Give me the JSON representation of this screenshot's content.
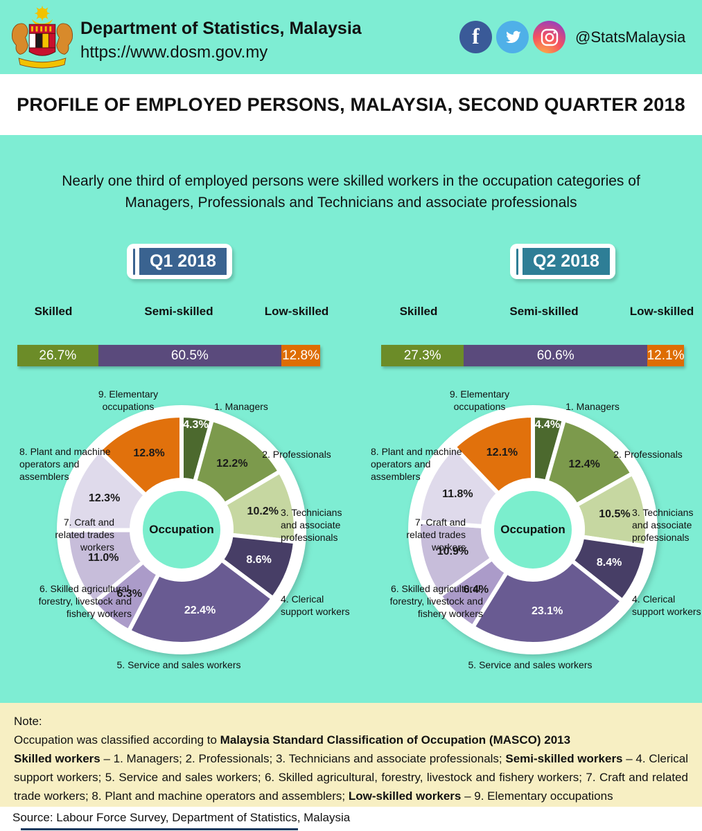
{
  "header": {
    "title": "Department of Statistics, Malaysia",
    "url": "https://www.dosm.gov.my",
    "handle": "@StatsMalaysia",
    "social": [
      {
        "name": "facebook",
        "color": "#3A5A98"
      },
      {
        "name": "twitter",
        "color": "#4FB0E8"
      },
      {
        "name": "instagram",
        "color": "gradient(#FDB743,#F5515F,#9F41B5)"
      }
    ]
  },
  "banner": {
    "title": "PROFILE OF EMPLOYED PERSONS, MALAYSIA, SECOND QUARTER 2018"
  },
  "subtitle": {
    "line1": "Nearly one third of employed persons were skilled workers in the occupation categories of",
    "line2": "Managers, Professionals and Technicians and associate professionals"
  },
  "badges": [
    {
      "label": "Q1 2018",
      "color": "#3A6390"
    },
    {
      "label": "Q2 2018",
      "color": "#2E7E96"
    }
  ],
  "colors": {
    "background_teal": "#7EEDD3",
    "note_yellow": "#F7EFC3",
    "donut_hole_teal": "#7BEECD",
    "white": "#FFFFFF"
  },
  "chart_data": [
    {
      "type": "bar",
      "quarter": "Q1 2018",
      "categories": [
        "Skilled",
        "Semi-skilled",
        "Low-skilled"
      ],
      "values": [
        26.7,
        60.5,
        12.8
      ],
      "value_labels": [
        "26.7%",
        "60.5%",
        "12.8%"
      ],
      "colors": [
        "#6C8C28",
        "#5A4A7C",
        "#DE6D03"
      ],
      "unit": "%"
    },
    {
      "type": "pie",
      "quarter": "Q1 2018",
      "center_label": "Occupation",
      "categories": [
        "1. Managers",
        "2. Professionals",
        "3. Technicians and associate professionals",
        "4. Clerical support workers",
        "5. Service and sales workers",
        "6. Skilled agricultural, forestry, livestock and fishery workers",
        "7. Craft and related trades workers",
        "8. Plant and machine operators and assemblers",
        "9. Elementary occupations"
      ],
      "category_lines": [
        [
          "1. Managers"
        ],
        [
          "2. Professionals"
        ],
        [
          "3. Technicians",
          "and associate",
          "professionals"
        ],
        [
          "4. Clerical",
          "support workers"
        ],
        [
          "5. Service and sales workers"
        ],
        [
          "6. Skilled agricultural,",
          "forestry, livestock and",
          "fishery workers"
        ],
        [
          "7. Craft and",
          "related trades",
          "workers"
        ],
        [
          "8. Plant and machine",
          "operators and",
          "assemblers"
        ],
        [
          "9. Elementary",
          "occupations"
        ]
      ],
      "values": [
        4.3,
        12.2,
        10.2,
        8.6,
        22.4,
        6.3,
        11.0,
        12.3,
        12.8
      ],
      "value_labels": [
        "4.3%",
        "12.2%",
        "10.2%",
        "8.6%",
        "22.4%",
        "6.3%",
        "11.0%",
        "12.3%",
        "12.8%"
      ],
      "colors": [
        "#4C692E",
        "#7C9A4C",
        "#C6D7A1",
        "#473E66",
        "#695B92",
        "#AB9BC9",
        "#C7BDDA",
        "#DFDAEB",
        "#E1710C"
      ],
      "label_text_colors": [
        "#FFFFFF",
        "#1A1A1A",
        "#1A1A1A",
        "#FFFFFF",
        "#FFFFFF",
        "#1A1A1A",
        "#1A1A1A",
        "#1A1A1A",
        "#1A1A1A"
      ]
    },
    {
      "type": "bar",
      "quarter": "Q2 2018",
      "categories": [
        "Skilled",
        "Semi-skilled",
        "Low-skilled"
      ],
      "values": [
        27.3,
        60.6,
        12.1
      ],
      "value_labels": [
        "27.3%",
        "60.6%",
        "12.1%"
      ],
      "colors": [
        "#6C8C28",
        "#5A4A7C",
        "#DE6D03"
      ],
      "unit": "%"
    },
    {
      "type": "pie",
      "quarter": "Q2 2018",
      "center_label": "Occupation",
      "categories": [
        "1. Managers",
        "2. Professionals",
        "3. Technicians and associate professionals",
        "4. Clerical support workers",
        "5. Service and sales workers",
        "6. Skilled agricultural, forestry, livestock and fishery workers",
        "7. Craft and related trades workers",
        "8. Plant and machine operators and assemblers",
        "9. Elementary occupations"
      ],
      "category_lines": [
        [
          "1. Managers"
        ],
        [
          "2. Professionals"
        ],
        [
          "3. Technicians",
          "and associate",
          "professionals"
        ],
        [
          "4. Clerical",
          "support workers"
        ],
        [
          "5. Service and sales workers"
        ],
        [
          "6. Skilled agricultural,",
          "forestry, livestock and",
          "fishery workers"
        ],
        [
          "7. Craft and",
          "related trades",
          "workers"
        ],
        [
          "8. Plant and machine",
          "operators and",
          "assemblers"
        ],
        [
          "9. Elementary",
          "occupations"
        ]
      ],
      "values": [
        4.4,
        12.4,
        10.5,
        8.4,
        23.1,
        6.4,
        10.9,
        11.8,
        12.1
      ],
      "value_labels": [
        "4.4%",
        "12.4%",
        "10.5%",
        "8.4%",
        "23.1%",
        "6.4%",
        "10.9%",
        "11.8%",
        "12.1%"
      ],
      "colors": [
        "#4C692E",
        "#7C9A4C",
        "#C6D7A1",
        "#473E66",
        "#695B92",
        "#AB9BC9",
        "#C7BDDA",
        "#DFDAEB",
        "#E1710C"
      ],
      "label_text_colors": [
        "#FFFFFF",
        "#1A1A1A",
        "#1A1A1A",
        "#FFFFFF",
        "#FFFFFF",
        "#1A1A1A",
        "#1A1A1A",
        "#1A1A1A",
        "#1A1A1A"
      ]
    }
  ],
  "note": {
    "title": "Note:",
    "line1_parts": [
      {
        "text": "Occupation was classified according to ",
        "bold": false
      },
      {
        "text": "Malaysia Standard Classification of Occupation (MASCO) 2013",
        "bold": true
      }
    ],
    "para_parts": [
      {
        "text": "Skilled workers",
        "bold": true
      },
      {
        "text": " – 1. Managers; 2. Professionals; 3. Technicians and associate professionals; ",
        "bold": false
      },
      {
        "text": "Semi-skilled workers",
        "bold": true
      },
      {
        "text": " – 4. Clerical support workers; 5. Service and sales workers; 6. Skilled agricultural, forestry, livestock and fishery workers; 7. Craft and related trade workers;  8. Plant and machine operators and assemblers; ",
        "bold": false
      },
      {
        "text": "Low-skilled workers",
        "bold": true
      },
      {
        "text": " – 9. Elementary occupations",
        "bold": false
      }
    ]
  },
  "source": {
    "text": "Source:  Labour Force Survey, Department of Statistics, Malaysia"
  }
}
